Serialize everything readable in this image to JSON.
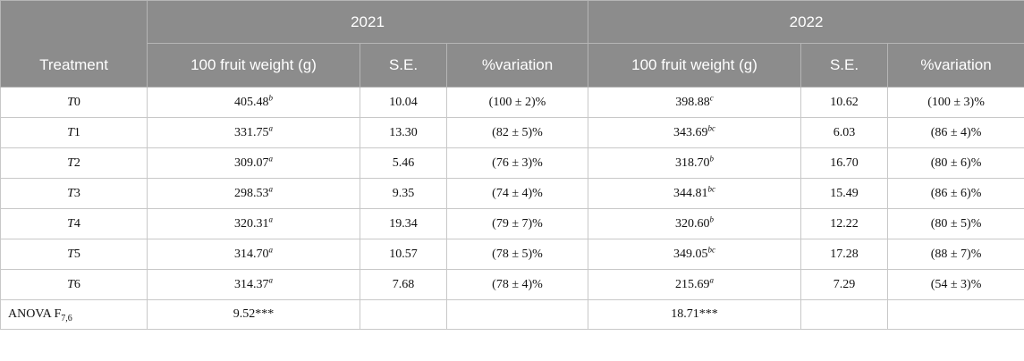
{
  "header": {
    "treatment": "Treatment",
    "year1": "2021",
    "year2": "2022",
    "col_weight": "100 fruit weight (g)",
    "col_se": "S.E.",
    "col_var": "%variation"
  },
  "rows": [
    {
      "t_letter": "T",
      "t_num": "0",
      "w1": "405.48",
      "s1": "b",
      "se1": "10.04",
      "v1": "(100 ± 2)%",
      "w2": "398.88",
      "s2": "c",
      "se2": "10.62",
      "v2": "(100 ± 3)%"
    },
    {
      "t_letter": "T",
      "t_num": "1",
      "w1": "331.75",
      "s1": "a",
      "se1": "13.30",
      "v1": "(82 ± 5)%",
      "w2": "343.69",
      "s2": "bc",
      "se2": "6.03",
      "v2": "(86 ± 4)%"
    },
    {
      "t_letter": "T",
      "t_num": "2",
      "w1": "309.07",
      "s1": "a",
      "se1": "5.46",
      "v1": "(76 ± 3)%",
      "w2": "318.70",
      "s2": "b",
      "se2": "16.70",
      "v2": "(80 ± 6)%"
    },
    {
      "t_letter": "T",
      "t_num": "3",
      "w1": "298.53",
      "s1": "a",
      "se1": "9.35",
      "v1": "(74 ± 4)%",
      "w2": "344.81",
      "s2": "bc",
      "se2": "15.49",
      "v2": "(86 ± 6)%"
    },
    {
      "t_letter": "T",
      "t_num": "4",
      "w1": "320.31",
      "s1": "a",
      "se1": "19.34",
      "v1": "(79 ± 7)%",
      "w2": "320.60",
      "s2": "b",
      "se2": "12.22",
      "v2": "(80 ± 5)%"
    },
    {
      "t_letter": "T",
      "t_num": "5",
      "w1": "314.70",
      "s1": "a",
      "se1": "10.57",
      "v1": "(78 ± 5)%",
      "w2": "349.05",
      "s2": "bc",
      "se2": "17.28",
      "v2": "(88 ± 7)%"
    },
    {
      "t_letter": "T",
      "t_num": "6",
      "w1": "314.37",
      "s1": "a",
      "se1": "7.68",
      "v1": "(78 ± 4)%",
      "w2": "215.69",
      "s2": "a",
      "se2": "7.29",
      "v2": "(54 ± 3)%"
    }
  ],
  "anova": {
    "label": "ANOVA F",
    "label_sub": "7,6",
    "f1": "9.52***",
    "f2": "18.71***"
  }
}
